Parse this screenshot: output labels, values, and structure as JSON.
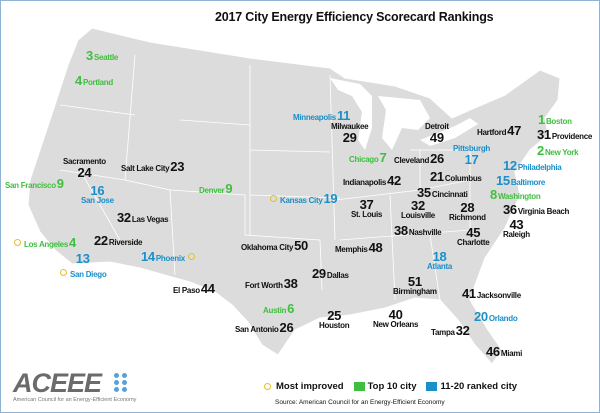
{
  "title": "2017 City Energy Efficiency Scorecard Rankings",
  "colors": {
    "top10": "#3fbf3f",
    "rank11_20": "#1a8fc9",
    "other": "#111111",
    "most_improved": "#e8c020",
    "land": "#dcdcdc",
    "frame": "#8fb3d6"
  },
  "cities": [
    {
      "name": "Seattle",
      "rank": "3",
      "cat": "top"
    },
    {
      "name": "Portland",
      "rank": "4",
      "cat": "top"
    },
    {
      "name": "Minneapolis",
      "rank": "11",
      "cat": "mid"
    },
    {
      "name": "Milwaukee",
      "rank": "29",
      "cat": "oth"
    },
    {
      "name": "Detroit",
      "rank": "49",
      "cat": "oth"
    },
    {
      "name": "Hartford",
      "rank": "47",
      "cat": "oth"
    },
    {
      "name": "Boston",
      "rank": "1",
      "cat": "top"
    },
    {
      "name": "Providence",
      "rank": "31",
      "cat": "oth"
    },
    {
      "name": "New York",
      "rank": "2",
      "cat": "top"
    },
    {
      "name": "Philadelphia",
      "rank": "12",
      "cat": "mid"
    },
    {
      "name": "Chicago",
      "rank": "7",
      "cat": "top"
    },
    {
      "name": "Cleveland",
      "rank": "26",
      "cat": "oth"
    },
    {
      "name": "Pittsburgh",
      "rank": "17",
      "cat": "mid"
    },
    {
      "name": "Baltimore",
      "rank": "15",
      "cat": "mid"
    },
    {
      "name": "Washington",
      "rank": "8",
      "cat": "top"
    },
    {
      "name": "Columbus",
      "rank": "21",
      "cat": "oth"
    },
    {
      "name": "Indianapolis",
      "rank": "42",
      "cat": "oth"
    },
    {
      "name": "Cincinnati",
      "rank": "35",
      "cat": "oth"
    },
    {
      "name": "Kansas City",
      "rank": "19",
      "cat": "mid",
      "most_improved": true
    },
    {
      "name": "St. Louis",
      "rank": "37",
      "cat": "oth"
    },
    {
      "name": "Louisville",
      "rank": "32",
      "cat": "oth"
    },
    {
      "name": "Richmond",
      "rank": "28",
      "cat": "oth"
    },
    {
      "name": "Virginia Beach",
      "rank": "36",
      "cat": "oth"
    },
    {
      "name": "Raleigh",
      "rank": "43",
      "cat": "oth"
    },
    {
      "name": "Nashville",
      "rank": "38",
      "cat": "oth"
    },
    {
      "name": "Charlotte",
      "rank": "45",
      "cat": "oth"
    },
    {
      "name": "Memphis",
      "rank": "48",
      "cat": "oth"
    },
    {
      "name": "Oklahoma City",
      "rank": "50",
      "cat": "oth"
    },
    {
      "name": "Atlanta",
      "rank": "18",
      "cat": "mid"
    },
    {
      "name": "Dallas",
      "rank": "29",
      "cat": "oth"
    },
    {
      "name": "Fort Worth",
      "rank": "38",
      "cat": "oth"
    },
    {
      "name": "Birmingham",
      "rank": "51",
      "cat": "oth"
    },
    {
      "name": "Jacksonville",
      "rank": "41",
      "cat": "oth"
    },
    {
      "name": "Austin",
      "rank": "6",
      "cat": "top"
    },
    {
      "name": "Houston",
      "rank": "25",
      "cat": "oth"
    },
    {
      "name": "New Orleans",
      "rank": "40",
      "cat": "oth"
    },
    {
      "name": "Orlando",
      "rank": "20",
      "cat": "mid"
    },
    {
      "name": "Tampa",
      "rank": "32",
      "cat": "oth"
    },
    {
      "name": "San Antonio",
      "rank": "26",
      "cat": "oth"
    },
    {
      "name": "Miami",
      "rank": "46",
      "cat": "oth"
    },
    {
      "name": "El Paso",
      "rank": "44",
      "cat": "oth"
    },
    {
      "name": "Phoenix",
      "rank": "14",
      "cat": "mid",
      "most_improved": true
    },
    {
      "name": "Los Angeles",
      "rank": "4",
      "cat": "top",
      "most_improved": true
    },
    {
      "name": "Riverside",
      "rank": "22",
      "cat": "oth"
    },
    {
      "name": "San Diego",
      "rank": "13",
      "cat": "mid",
      "most_improved": true
    },
    {
      "name": "Las Vegas",
      "rank": "32",
      "cat": "oth"
    },
    {
      "name": "San Francisco",
      "rank": "9",
      "cat": "top"
    },
    {
      "name": "Sacramento",
      "rank": "24",
      "cat": "oth"
    },
    {
      "name": "San Jose",
      "rank": "16",
      "cat": "mid"
    },
    {
      "name": "Salt Lake City",
      "rank": "23",
      "cat": "oth"
    },
    {
      "name": "Denver",
      "rank": "9",
      "cat": "top"
    }
  ],
  "legend": {
    "most_improved": "Most improved",
    "top10": "Top 10 city",
    "rank11_20": "11-20 ranked city"
  },
  "source": "Source: American Council for an Energy-Efficient Economy",
  "logo": {
    "wordmark": "ACEEE",
    "tagline": "American Council for an Energy-Efficient Economy"
  }
}
